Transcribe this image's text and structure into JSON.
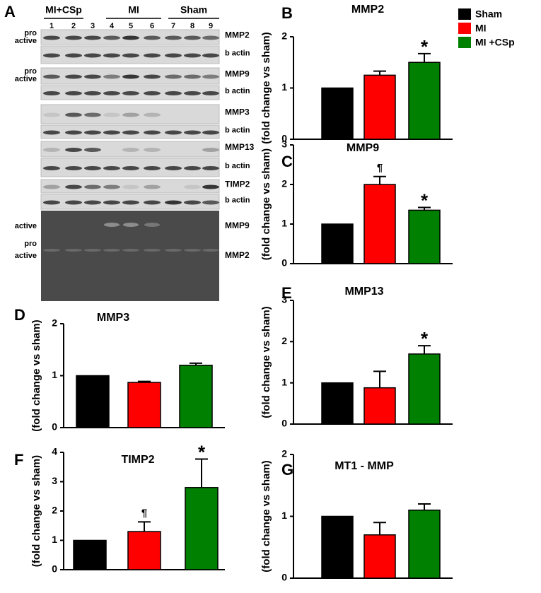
{
  "panel_a": {
    "label": "A",
    "groups": [
      "MI+CSp",
      "MI",
      "Sham"
    ],
    "lanes": [
      "1",
      "2",
      "3",
      "4",
      "5",
      "6",
      "7",
      "8",
      "9"
    ],
    "rows": [
      {
        "label": "MMP2",
        "left": [
          "pro",
          "active"
        ]
      },
      {
        "label": "b actin"
      },
      {
        "label": "MMP9",
        "left": [
          "pro",
          "active"
        ]
      },
      {
        "label": "b actin"
      },
      {
        "label": "MMP3"
      },
      {
        "label": "b actin"
      },
      {
        "label": "MMP13"
      },
      {
        "label": "b actin"
      },
      {
        "label": "TIMP2"
      },
      {
        "label": "b actin"
      }
    ],
    "zymogram": [
      {
        "label": "MMP9",
        "left": [
          "active"
        ]
      },
      {
        "label": "MMP2",
        "left": [
          "pro",
          "active"
        ]
      }
    ]
  },
  "legend": [
    {
      "name": "Sham",
      "color": "#000000"
    },
    {
      "name": "MI",
      "color": "#ff0000"
    },
    {
      "name": "MI +CSp",
      "color": "#008000"
    }
  ],
  "chart_data": [
    {
      "type": "bar",
      "panel": "B",
      "title": "MMP2",
      "y_label": "(fold change vs sham)",
      "categories": [
        null,
        null,
        null
      ],
      "colors": [
        "#000000",
        "#ff0000",
        "#008000"
      ],
      "values": [
        1,
        1.25,
        1.5
      ],
      "errors": [
        null,
        0.08,
        0.17
      ],
      "annotations": [
        null,
        null,
        "*"
      ],
      "ylim": [
        0,
        2
      ],
      "yticks": [
        0,
        1,
        2
      ]
    },
    {
      "type": "bar",
      "panel": "C",
      "title": "MMP9",
      "y_label": "(fold change vs sham)",
      "categories": [
        null,
        null,
        null
      ],
      "colors": [
        "#000000",
        "#ff0000",
        "#008000"
      ],
      "values": [
        1,
        2.0,
        1.35
      ],
      "errors": [
        null,
        0.2,
        0.07
      ],
      "annotations": [
        null,
        "¶",
        "*"
      ],
      "ylim": [
        0,
        3
      ],
      "yticks": [
        0,
        1,
        2,
        3
      ]
    },
    {
      "type": "bar",
      "panel": "D",
      "title": "MMP3",
      "y_label": "(fold change vs sham)",
      "categories": [
        null,
        null,
        null
      ],
      "colors": [
        "#000000",
        "#ff0000",
        "#008000"
      ],
      "values": [
        1,
        0.87,
        1.2
      ],
      "errors": [
        null,
        0.02,
        0.04
      ],
      "annotations": [
        null,
        null,
        null
      ],
      "ylim": [
        0,
        2
      ],
      "yticks": [
        0,
        1,
        2
      ]
    },
    {
      "type": "bar",
      "panel": "E",
      "title": "MMP13",
      "y_label": "(fold change vs sham)",
      "categories": [
        null,
        null,
        null
      ],
      "colors": [
        "#000000",
        "#ff0000",
        "#008000"
      ],
      "values": [
        1,
        0.88,
        1.7
      ],
      "errors": [
        null,
        0.4,
        0.2
      ],
      "annotations": [
        null,
        null,
        "*"
      ],
      "ylim": [
        0,
        3
      ],
      "yticks": [
        0,
        1,
        2,
        3
      ]
    },
    {
      "type": "bar",
      "panel": "F",
      "title": "TIMP2",
      "y_label": "(fold change vs sham)",
      "categories": [
        null,
        null,
        null
      ],
      "colors": [
        "#000000",
        "#ff0000",
        "#008000"
      ],
      "values": [
        1,
        1.3,
        2.8
      ],
      "errors": [
        null,
        0.33,
        0.97
      ],
      "annotations": [
        null,
        "¶",
        "*"
      ],
      "ylim": [
        0,
        4
      ],
      "yticks": [
        0,
        1,
        2,
        3,
        4
      ]
    },
    {
      "type": "bar",
      "panel": "G",
      "title": "MT1 - MMP",
      "y_label": "(fold change vs sham)",
      "categories": [
        null,
        null,
        null
      ],
      "colors": [
        "#000000",
        "#ff0000",
        "#008000"
      ],
      "values": [
        1,
        0.7,
        1.1
      ],
      "errors": [
        null,
        0.2,
        0.1
      ],
      "annotations": [
        null,
        null,
        null
      ],
      "ylim": [
        0,
        2
      ],
      "yticks": [
        0,
        1,
        2
      ]
    }
  ]
}
